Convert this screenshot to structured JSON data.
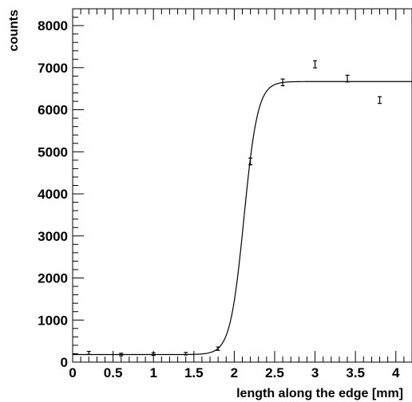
{
  "chart_data": {
    "type": "scatter",
    "xlabel": "length along the edge [mm]",
    "ylabel": "counts",
    "xlim": [
      0,
      4.2
    ],
    "ylim": [
      0,
      8400
    ],
    "x_major_ticks": [
      0,
      0.5,
      1,
      1.5,
      2,
      2.5,
      3,
      3.5,
      4
    ],
    "x_tick_labels": [
      "0",
      "0.5",
      "1",
      "1.5",
      "2",
      "2.5",
      "3",
      "3.5",
      "4"
    ],
    "y_major_ticks": [
      0,
      1000,
      2000,
      3000,
      4000,
      5000,
      6000,
      7000,
      8000
    ],
    "y_tick_labels": [
      "0",
      "1000",
      "2000",
      "3000",
      "4000",
      "5000",
      "6000",
      "7000",
      "8000"
    ],
    "grid": false,
    "series": [
      {
        "kind": "points_with_errors",
        "x": [
          0.2,
          0.6,
          1.0,
          1.4,
          1.8,
          2.2,
          2.6,
          3.0,
          3.4,
          3.8
        ],
        "y": [
          220,
          180,
          190,
          200,
          320,
          4770,
          6650,
          7080,
          6740,
          6230
        ],
        "yerr": [
          35,
          30,
          30,
          30,
          40,
          80,
          80,
          85,
          80,
          80
        ],
        "color": "#000000"
      },
      {
        "kind": "fit_curve",
        "function": "sigmoid",
        "baseline": 180,
        "plateau": 6670,
        "center": 2.12,
        "width": 0.085,
        "color": "#000000"
      }
    ]
  }
}
